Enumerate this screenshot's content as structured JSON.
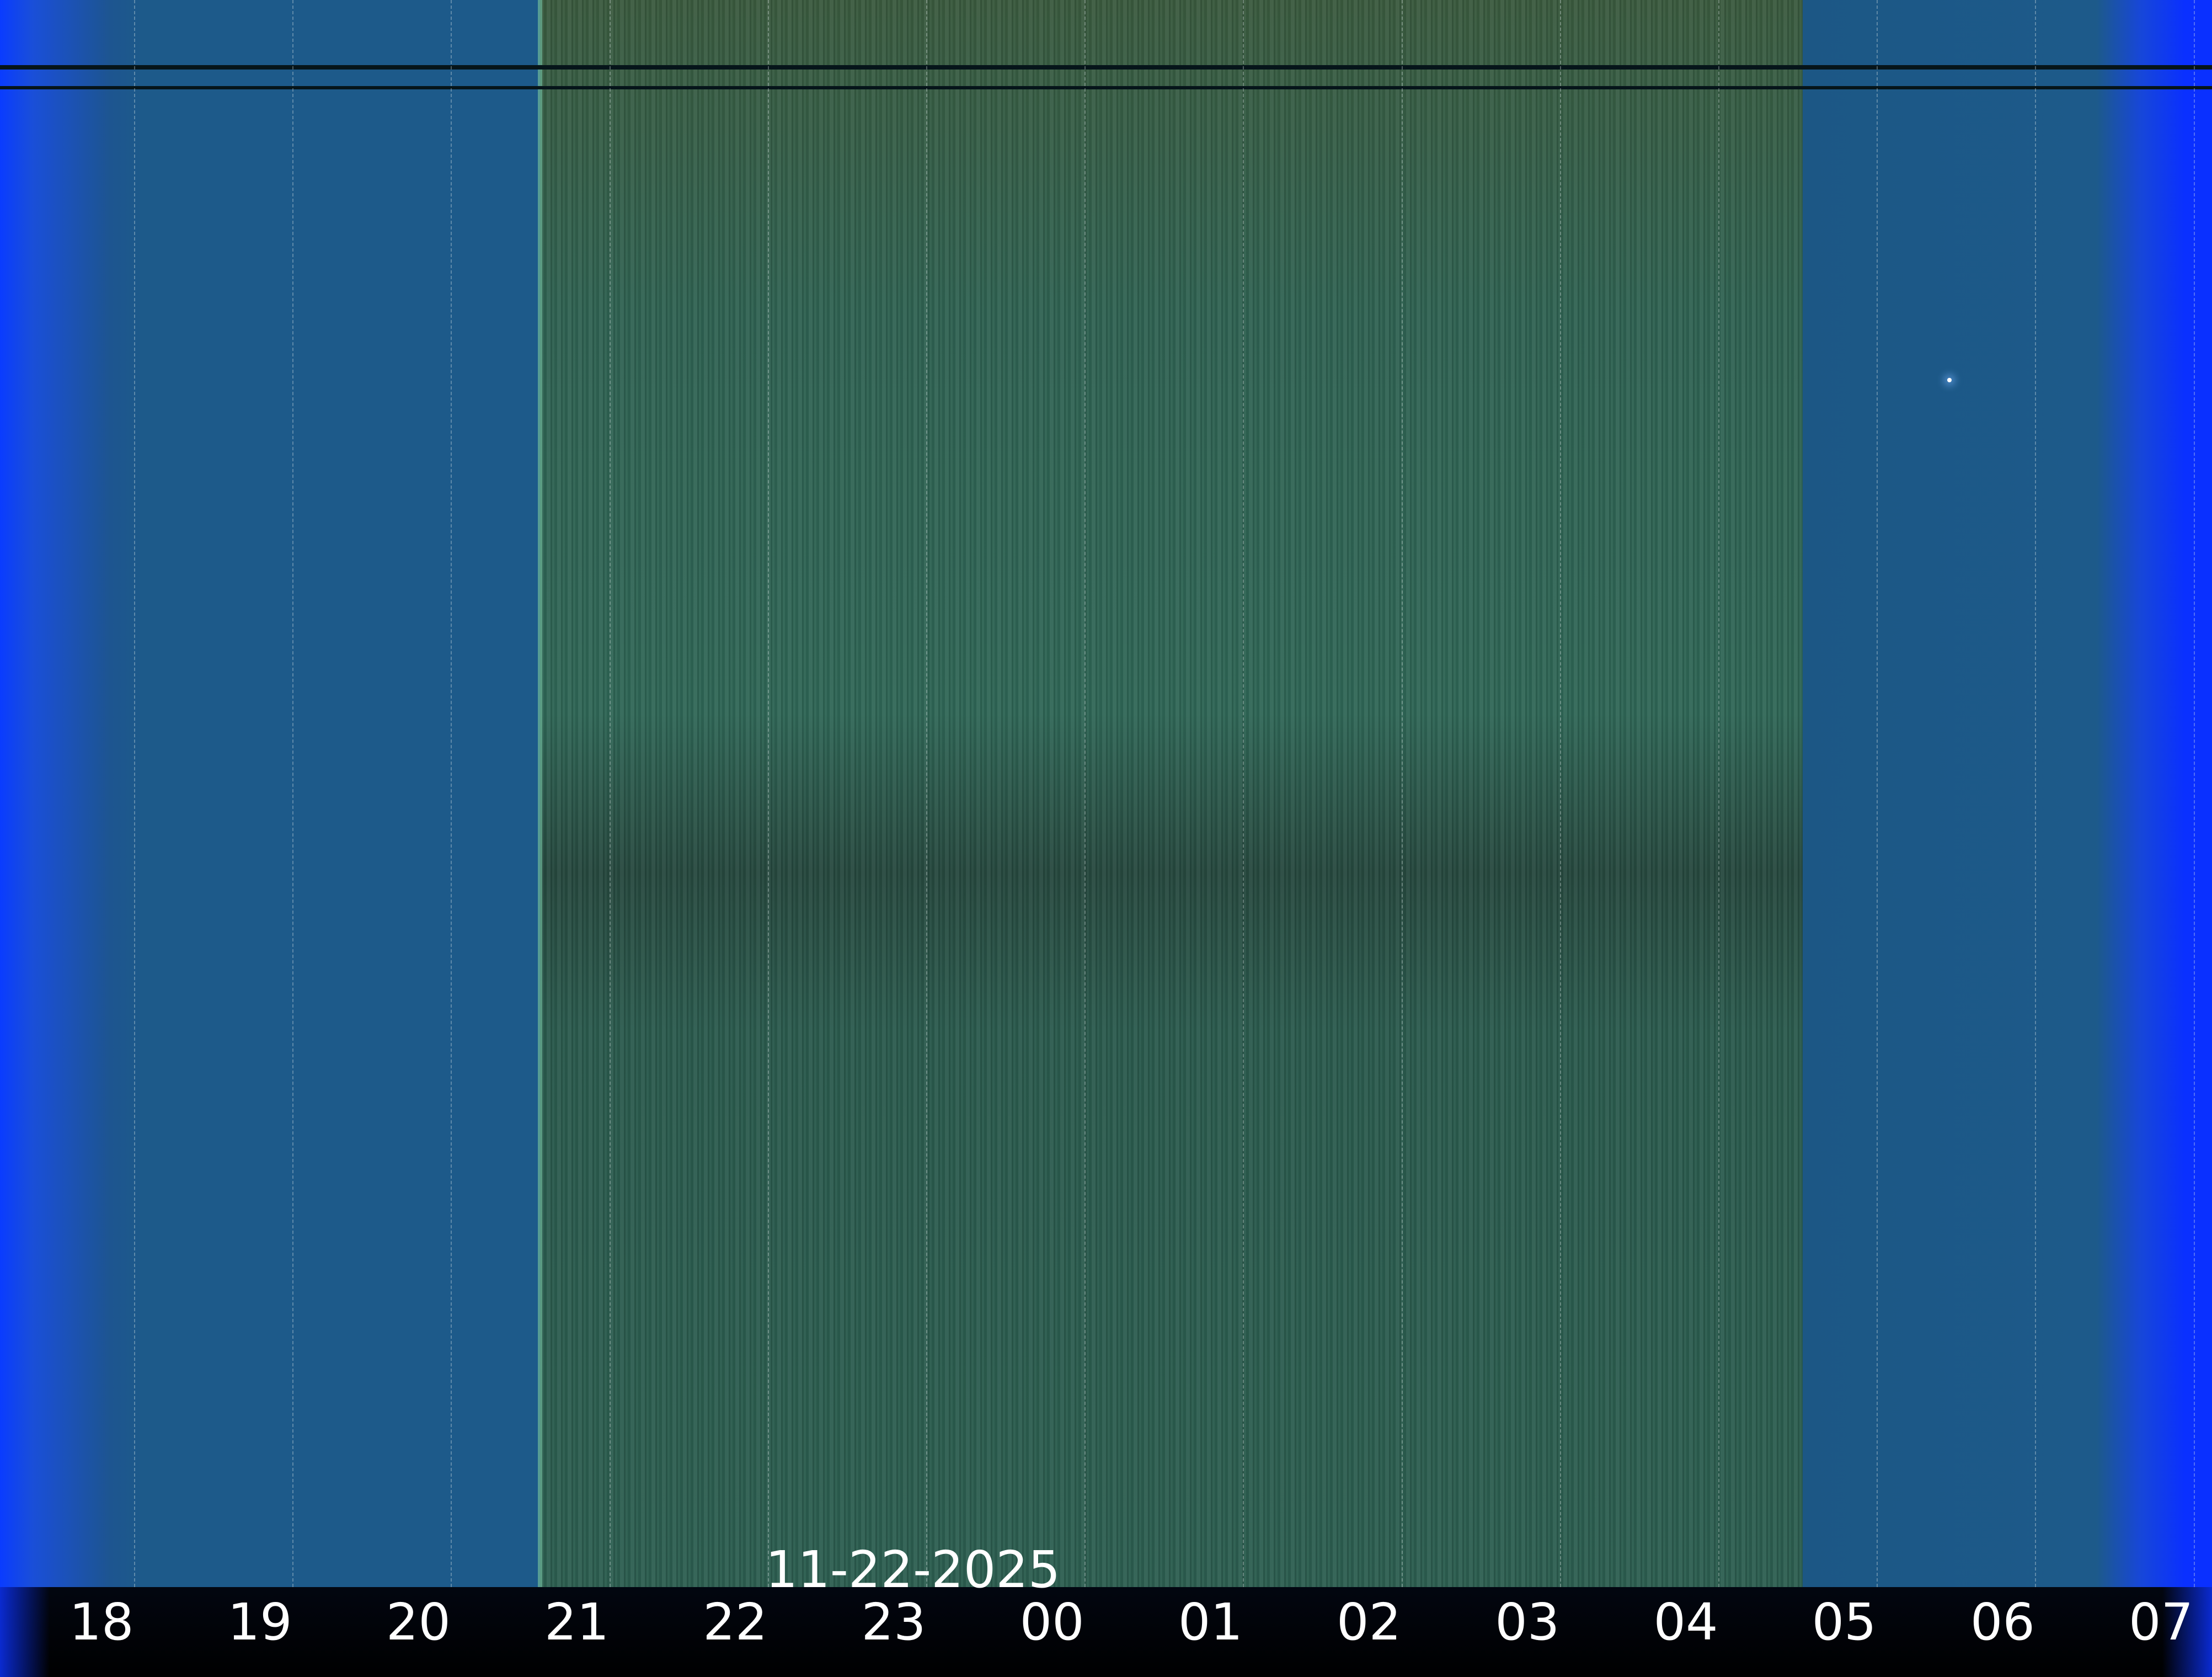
{
  "keogram": {
    "date_label": "11-22-2025",
    "hour_labels": [
      "18",
      "19",
      "20",
      "21",
      "22",
      "23",
      "00",
      "01",
      "02",
      "03",
      "04",
      "05",
      "06",
      "07"
    ],
    "colors": {
      "twilight_blue": "#1d5a8a",
      "night_green": "#2e5a4c",
      "edge_blue": "#0a3cff",
      "label_bar": "#000000"
    }
  }
}
